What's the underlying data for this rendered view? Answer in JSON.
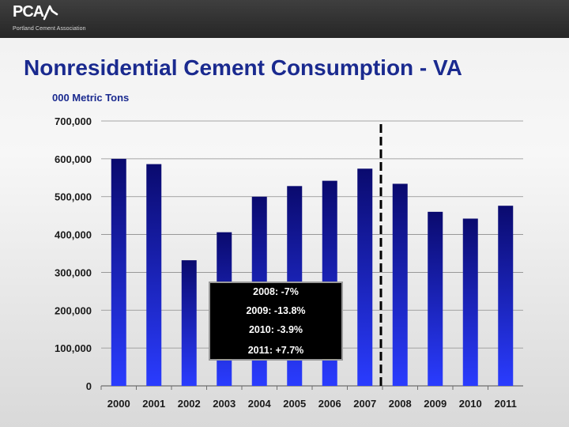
{
  "header": {
    "logo_text": "PCA",
    "logo_subtitle": "Portland Cement Association"
  },
  "slide": {
    "title": "Nonresidential Cement Consumption - VA",
    "units_label": "000 Metric Tons"
  },
  "chart_data": {
    "type": "bar",
    "title": "Nonresidential Cement Consumption - VA",
    "ylabel": "000 Metric Tons",
    "categories": [
      "2000",
      "2001",
      "2002",
      "2003",
      "2004",
      "2005",
      "2006",
      "2007",
      "2008",
      "2009",
      "2010",
      "2011"
    ],
    "values": [
      600000,
      586000,
      332000,
      406000,
      500000,
      528000,
      542000,
      574000,
      534000,
      460000,
      442000,
      476000
    ],
    "ylim": [
      0,
      700000
    ],
    "yticks": [
      0,
      100000,
      200000,
      300000,
      400000,
      500000,
      600000,
      700000
    ],
    "ytick_labels": [
      "0",
      "100,000",
      "200,000",
      "300,000",
      "400,000",
      "500,000",
      "600,000",
      "700,000"
    ],
    "grid": true,
    "bar_color_top": "#0a0a6e",
    "bar_color_bottom": "#2a3cff",
    "forecast_divider_after": "2007",
    "annotations": [
      "2008:  -7%",
      "2009:  -13.8%",
      "2010:  -3.9%",
      "2011:  +7.7%"
    ]
  },
  "colors": {
    "title": "#1a2a8f",
    "header_bg": "#333333",
    "note_bg": "#000000",
    "note_text": "#ffffff"
  }
}
